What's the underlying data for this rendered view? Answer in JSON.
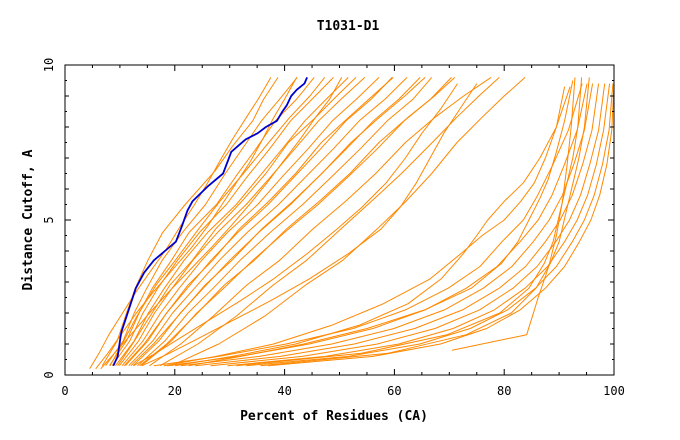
{
  "chart_data": {
    "type": "line",
    "title": "T1031-D1",
    "xlabel": "Percent of Residues (CA)",
    "ylabel": "Distance Cutoff, A",
    "xlim": [
      0,
      100
    ],
    "ylim": [
      0,
      10
    ],
    "x_ticks": [
      "0",
      "20",
      "40",
      "60",
      "80",
      "100"
    ],
    "y_ticks": [
      "0",
      "5",
      "10"
    ],
    "grid": false,
    "highlight_color": "#0000cc",
    "series_color": "#ff8800",
    "highlight": {
      "x": [
        8.8,
        9.6,
        10.1,
        10.3,
        11.6,
        12.9,
        14.4,
        16.2,
        18.2,
        20.2,
        21.3,
        22.3,
        23.2,
        26.1,
        28.8,
        30.3,
        31.6,
        32.9,
        35.1,
        36.6,
        38.6,
        39.6,
        40.4,
        41.2,
        42.2,
        43.6,
        44.1
      ],
      "y": [
        0.3,
        0.6,
        1.2,
        1.4,
        2.1,
        2.8,
        3.3,
        3.7,
        4.0,
        4.3,
        4.8,
        5.3,
        5.6,
        6.1,
        6.5,
        7.2,
        7.4,
        7.6,
        7.8,
        8.0,
        8.2,
        8.5,
        8.7,
        9.0,
        9.2,
        9.4,
        9.6
      ]
    },
    "series": [
      {
        "x": [
          6.8,
          9.5,
          11.2,
          12.8,
          15.1,
          17.8,
          21.9,
          27.4,
          30.6,
          34.2,
          36.2,
          38.8
        ],
        "y": [
          0.3,
          1.1,
          2.0,
          2.8,
          3.7,
          4.6,
          5.5,
          6.6,
          7.4,
          8.2,
          8.9,
          9.6
        ]
      },
      {
        "x": [
          7.4,
          10.6,
          12.6,
          14.9,
          17.7,
          21.4,
          25.6,
          29.2,
          32.7,
          35.8,
          39.1,
          42.3
        ],
        "y": [
          0.3,
          1.1,
          2.0,
          2.8,
          3.7,
          4.6,
          5.5,
          6.5,
          7.4,
          8.2,
          8.9,
          9.6
        ]
      },
      {
        "x": [
          8.1,
          11.2,
          13.5,
          15.9,
          19.4,
          22.6,
          27.6,
          31.1,
          34.8,
          38.3,
          42.2,
          45.4
        ],
        "y": [
          0.3,
          1.1,
          2.0,
          2.8,
          3.7,
          4.6,
          5.5,
          6.4,
          7.3,
          8.2,
          8.9,
          9.6
        ]
      },
      {
        "x": [
          8.6,
          11.8,
          14.2,
          16.9,
          20.5,
          24.5,
          29.4,
          33.2,
          37.3,
          41.1,
          45.0,
          48.9
        ],
        "y": [
          0.3,
          1.1,
          2.0,
          2.8,
          3.7,
          4.6,
          5.5,
          6.4,
          7.3,
          8.2,
          8.9,
          9.6
        ]
      },
      {
        "x": [
          9.2,
          12.6,
          15.2,
          18.1,
          21.7,
          26.0,
          31.2,
          35.4,
          39.6,
          43.7,
          47.6,
          51.6
        ],
        "y": [
          0.3,
          1.1,
          2.0,
          2.8,
          3.7,
          4.6,
          5.5,
          6.4,
          7.3,
          8.2,
          8.9,
          9.6
        ]
      },
      {
        "x": [
          9.9,
          13.4,
          16.3,
          19.5,
          23.3,
          27.8,
          33.0,
          37.5,
          41.9,
          46.2,
          50.3,
          54.6
        ],
        "y": [
          0.3,
          1.1,
          2.0,
          2.8,
          3.7,
          4.6,
          5.5,
          6.4,
          7.3,
          8.2,
          8.9,
          9.6
        ]
      },
      {
        "x": [
          10.4,
          14.2,
          17.4,
          20.8,
          24.9,
          29.6,
          35.1,
          39.6,
          44.3,
          48.7,
          53.1,
          57.2
        ],
        "y": [
          0.3,
          1.1,
          2.0,
          2.8,
          3.7,
          4.6,
          5.5,
          6.4,
          7.3,
          8.2,
          8.9,
          9.6
        ]
      },
      {
        "x": [
          11.0,
          15.1,
          18.5,
          22.3,
          26.6,
          31.5,
          37.0,
          41.8,
          46.6,
          51.2,
          55.8,
          59.6
        ],
        "y": [
          0.3,
          1.1,
          2.0,
          2.8,
          3.7,
          4.6,
          5.5,
          6.4,
          7.3,
          8.2,
          8.9,
          9.6
        ]
      },
      {
        "x": [
          11.6,
          16.0,
          19.6,
          23.6,
          28.1,
          33.2,
          38.9,
          43.9,
          48.9,
          53.6,
          58.3,
          62.3
        ],
        "y": [
          0.3,
          1.1,
          2.0,
          2.8,
          3.7,
          4.6,
          5.5,
          6.4,
          7.3,
          8.2,
          8.9,
          9.6
        ]
      },
      {
        "x": [
          12.4,
          17.1,
          21.0,
          25.2,
          30.0,
          35.3,
          41.1,
          46.2,
          51.3,
          56.2,
          60.8,
          64.7
        ],
        "y": [
          0.3,
          1.1,
          2.0,
          2.8,
          3.7,
          4.6,
          5.5,
          6.4,
          7.3,
          8.2,
          8.9,
          9.6
        ]
      },
      {
        "x": [
          13.2,
          18.2,
          22.4,
          27.0,
          31.9,
          37.4,
          43.3,
          48.6,
          53.8,
          58.7,
          63.4,
          66.8
        ],
        "y": [
          0.3,
          1.1,
          2.0,
          2.8,
          3.7,
          4.6,
          5.5,
          6.4,
          7.3,
          8.2,
          8.9,
          9.6
        ]
      },
      {
        "x": [
          13.9,
          19.4,
          24.0,
          28.9,
          34.2,
          40.0,
          46.1,
          51.6,
          56.9,
          61.8,
          66.6,
          70.4
        ],
        "y": [
          0.3,
          1.1,
          2.0,
          2.8,
          3.7,
          4.6,
          5.5,
          6.4,
          7.3,
          8.2,
          8.9,
          9.6
        ]
      },
      {
        "x": [
          8.2,
          10.4,
          13.1,
          16.6,
          20.1,
          24.3,
          28.2,
          32.5,
          37.1,
          40.9,
          44.6,
          47.3
        ],
        "y": [
          0.3,
          1.0,
          1.9,
          2.9,
          3.7,
          4.7,
          5.6,
          6.5,
          7.5,
          8.3,
          9.0,
          9.6
        ]
      },
      {
        "x": [
          9.6,
          12.3,
          15.5,
          19.1,
          23.2,
          27.4,
          32.2,
          36.6,
          40.7,
          45.6,
          49.5,
          53.0
        ],
        "y": [
          0.3,
          1.0,
          1.9,
          2.9,
          3.7,
          4.7,
          5.6,
          6.5,
          7.5,
          8.3,
          9.0,
          9.6
        ]
      },
      {
        "x": [
          10.8,
          14.4,
          18.1,
          22.4,
          26.9,
          31.7,
          37.1,
          42.0,
          46.7,
          51.6,
          56.0,
          59.8
        ],
        "y": [
          0.3,
          1.0,
          1.9,
          2.9,
          3.7,
          4.7,
          5.6,
          6.5,
          7.5,
          8.3,
          9.0,
          9.6
        ]
      },
      {
        "x": [
          12.0,
          16.1,
          20.6,
          25.5,
          30.4,
          35.8,
          41.5,
          46.8,
          52.1,
          57.2,
          61.9,
          65.6
        ],
        "y": [
          0.3,
          1.0,
          1.9,
          2.9,
          3.7,
          4.7,
          5.6,
          6.5,
          7.5,
          8.3,
          9.0,
          9.6
        ]
      },
      {
        "x": [
          13.6,
          18.5,
          23.6,
          29.0,
          34.5,
          40.3,
          46.3,
          51.9,
          57.2,
          62.4,
          67.3,
          71.0
        ],
        "y": [
          0.3,
          1.0,
          1.9,
          2.9,
          3.7,
          4.7,
          5.6,
          6.5,
          7.5,
          8.3,
          9.0,
          9.6
        ]
      },
      {
        "x": [
          15.4,
          21.1,
          27.0,
          33.1,
          39.1,
          45.1,
          51.1,
          56.6,
          62.0,
          67.3,
          72.6,
          77.6
        ],
        "y": [
          0.3,
          1.0,
          1.9,
          2.9,
          3.7,
          4.7,
          5.6,
          6.5,
          7.5,
          8.3,
          9.0,
          9.6
        ]
      },
      {
        "x": [
          17.3,
          24.2,
          31.2,
          37.9,
          44.0,
          50.2,
          55.8,
          61.3,
          66.9,
          71.3,
          75.4,
          79.1
        ],
        "y": [
          0.3,
          1.0,
          1.9,
          2.9,
          3.7,
          4.7,
          5.6,
          6.5,
          7.5,
          8.3,
          9.0,
          9.6
        ]
      },
      {
        "x": [
          19.4,
          28.0,
          36.4,
          43.8,
          50.6,
          56.8,
          62.1,
          66.8,
          71.4,
          75.9,
          80.0,
          83.8
        ],
        "y": [
          0.3,
          1.0,
          1.9,
          2.9,
          3.7,
          4.7,
          5.6,
          6.5,
          7.5,
          8.3,
          9.0,
          9.6
        ]
      },
      {
        "x": [
          16.2,
          28.0,
          40.3,
          52.5,
          62.0,
          69.8,
          75.6,
          79.6,
          83.5,
          86.1,
          88.9,
          91.7,
          94.2
        ],
        "y": [
          0.3,
          0.6,
          1.0,
          1.5,
          2.1,
          2.8,
          3.5,
          4.3,
          5.0,
          5.8,
          6.8,
          7.9,
          9.4
        ]
      },
      {
        "x": [
          18.6,
          31.6,
          44.5,
          56.1,
          65.6,
          73.1,
          78.7,
          82.9,
          86.2,
          88.7,
          91.0,
          93.3,
          95.1
        ],
        "y": [
          0.3,
          0.6,
          1.0,
          1.5,
          2.1,
          2.8,
          3.5,
          4.3,
          5.0,
          5.8,
          6.8,
          7.9,
          9.4
        ]
      },
      {
        "x": [
          21.1,
          35.4,
          48.6,
          59.9,
          69.1,
          76.2,
          81.4,
          85.3,
          88.2,
          90.6,
          92.7,
          94.6,
          96.1
        ],
        "y": [
          0.3,
          0.6,
          1.0,
          1.5,
          2.1,
          2.8,
          3.5,
          4.3,
          5.0,
          5.8,
          6.8,
          7.9,
          9.4
        ]
      },
      {
        "x": [
          23.7,
          39.2,
          52.7,
          63.7,
          72.4,
          79.1,
          83.9,
          87.5,
          90.2,
          92.4,
          94.3,
          96.0,
          97.2
        ],
        "y": [
          0.3,
          0.6,
          1.0,
          1.5,
          2.1,
          2.8,
          3.5,
          4.3,
          5.0,
          5.8,
          6.8,
          7.9,
          9.4
        ]
      },
      {
        "x": [
          26.5,
          43.2,
          56.9,
          67.4,
          75.5,
          81.6,
          86.0,
          89.4,
          91.9,
          93.9,
          95.6,
          97.2,
          98.3
        ],
        "y": [
          0.3,
          0.6,
          1.0,
          1.5,
          2.1,
          2.8,
          3.5,
          4.3,
          5.0,
          5.8,
          6.8,
          7.9,
          9.4
        ]
      },
      {
        "x": [
          29.6,
          47.4,
          60.8,
          70.7,
          78.2,
          83.8,
          87.9,
          91.0,
          93.3,
          95.2,
          96.8,
          98.1,
          99.2
        ],
        "y": [
          0.3,
          0.6,
          1.0,
          1.5,
          2.1,
          2.8,
          3.5,
          4.3,
          5.0,
          5.8,
          6.8,
          7.9,
          9.4
        ]
      },
      {
        "x": [
          33.0,
          51.6,
          64.6,
          73.8,
          80.6,
          85.7,
          89.5,
          92.4,
          94.6,
          96.4,
          97.9,
          99.1,
          99.8
        ],
        "y": [
          0.3,
          0.6,
          1.0,
          1.5,
          2.1,
          2.8,
          3.5,
          4.3,
          5.0,
          5.8,
          6.8,
          7.9,
          9.4
        ]
      },
      {
        "x": [
          37.0,
          56.1,
          68.4,
          76.8,
          82.9,
          87.5,
          91.0,
          93.7,
          95.8,
          97.4,
          98.7,
          99.6,
          100.0
        ],
        "y": [
          0.3,
          0.6,
          1.0,
          1.5,
          2.1,
          2.8,
          3.5,
          4.3,
          5.0,
          5.8,
          6.8,
          7.9,
          9.4
        ]
      },
      {
        "x": [
          31.2,
          54.0,
          69.6,
          79.2,
          84.5,
          87.3,
          88.9,
          90.1,
          91.3,
          92.5,
          93.4,
          94.1
        ],
        "y": [
          0.3,
          0.7,
          1.3,
          2.0,
          2.8,
          3.6,
          4.3,
          5.2,
          6.1,
          7.0,
          8.0,
          9.6
        ]
      },
      {
        "x": [
          35.6,
          58.8,
          73.1,
          81.3,
          85.8,
          88.4,
          90.0,
          91.2,
          92.4,
          93.6,
          94.6,
          95.5
        ],
        "y": [
          0.3,
          0.7,
          1.3,
          2.0,
          2.8,
          3.6,
          4.3,
          5.2,
          6.1,
          7.0,
          8.0,
          9.6
        ]
      },
      {
        "x": [
          70.5,
          84.1,
          86.2,
          88.1,
          89.5,
          90.6,
          91.4,
          92.2,
          92.9
        ],
        "y": [
          0.8,
          1.3,
          2.5,
          3.5,
          4.5,
          5.6,
          6.7,
          8.0,
          9.6
        ]
      },
      {
        "x": [
          22.5,
          32.0,
          43.5,
          55.0,
          65.5,
          74.0,
          79.5,
          82.5,
          84.5,
          86.5,
          88.0,
          89.5,
          91.0,
          92.5
        ],
        "y": [
          0.3,
          0.6,
          1.0,
          1.5,
          2.1,
          2.8,
          3.6,
          4.3,
          5.0,
          5.7,
          6.3,
          7.2,
          8.2,
          9.5
        ]
      },
      {
        "x": [
          20.0,
          30.5,
          42.0,
          53.5,
          62.5,
          68.5,
          72.5,
          75.0,
          77.0,
          80.0,
          83.5,
          86.5,
          89.5,
          92.0
        ],
        "y": [
          0.3,
          0.6,
          1.0,
          1.6,
          2.3,
          3.1,
          3.9,
          4.5,
          5.0,
          5.6,
          6.2,
          7.0,
          8.0,
          9.3
        ]
      },
      {
        "x": [
          18.0,
          27.5,
          38.0,
          48.5,
          58.0,
          66.5,
          72.0,
          76.0,
          80.0,
          83.0,
          85.5,
          87.5,
          89.5,
          91.0
        ],
        "y": [
          0.3,
          0.6,
          1.0,
          1.6,
          2.3,
          3.1,
          3.9,
          4.5,
          5.0,
          5.6,
          6.2,
          7.0,
          8.0,
          9.3
        ]
      },
      {
        "x": [
          14.0,
          19.0,
          24.5,
          31.0,
          37.5,
          44.5,
          51.5,
          57.5,
          61.0,
          64.0,
          66.5,
          69.0,
          72.0,
          75.0
        ],
        "y": [
          0.3,
          0.7,
          1.2,
          1.8,
          2.4,
          3.1,
          3.9,
          4.7,
          5.4,
          6.2,
          7.0,
          7.8,
          8.6,
          9.4
        ]
      },
      {
        "x": [
          12.5,
          16.5,
          21.0,
          26.5,
          32.0,
          38.0,
          44.0,
          49.5,
          54.0,
          58.5,
          62.0,
          65.0,
          68.5,
          71.5
        ],
        "y": [
          0.3,
          0.7,
          1.2,
          1.8,
          2.4,
          3.1,
          3.9,
          4.7,
          5.4,
          6.2,
          7.0,
          7.8,
          8.6,
          9.4
        ]
      },
      {
        "x": [
          4.5,
          6.2,
          8.0,
          10.5,
          13.0,
          15.8,
          18.6,
          21.0,
          23.6,
          26.0,
          28.2,
          30.5,
          33.0,
          35.2,
          37.5
        ],
        "y": [
          0.2,
          0.7,
          1.3,
          2.0,
          2.7,
          3.4,
          4.1,
          4.8,
          5.5,
          6.2,
          6.9,
          7.6,
          8.3,
          8.9,
          9.6
        ]
      },
      {
        "x": [
          5.6,
          7.8,
          10.2,
          13.0,
          16.2,
          19.6,
          23.0,
          26.0,
          28.6,
          31.2,
          33.8,
          36.0,
          38.0,
          40.0,
          42.2
        ],
        "y": [
          0.2,
          0.7,
          1.3,
          2.0,
          2.7,
          3.4,
          4.1,
          4.8,
          5.5,
          6.2,
          6.9,
          7.6,
          8.3,
          8.9,
          9.6
        ]
      },
      {
        "x": [
          6.5,
          9.0,
          12.0,
          15.4,
          19.0,
          22.8,
          26.6,
          30.2,
          33.6,
          36.8,
          39.8,
          42.8,
          45.6,
          48.2,
          50.4
        ],
        "y": [
          0.2,
          0.7,
          1.3,
          2.0,
          2.7,
          3.4,
          4.1,
          4.8,
          5.5,
          6.2,
          6.9,
          7.6,
          8.3,
          8.9,
          9.6
        ]
      }
    ]
  }
}
